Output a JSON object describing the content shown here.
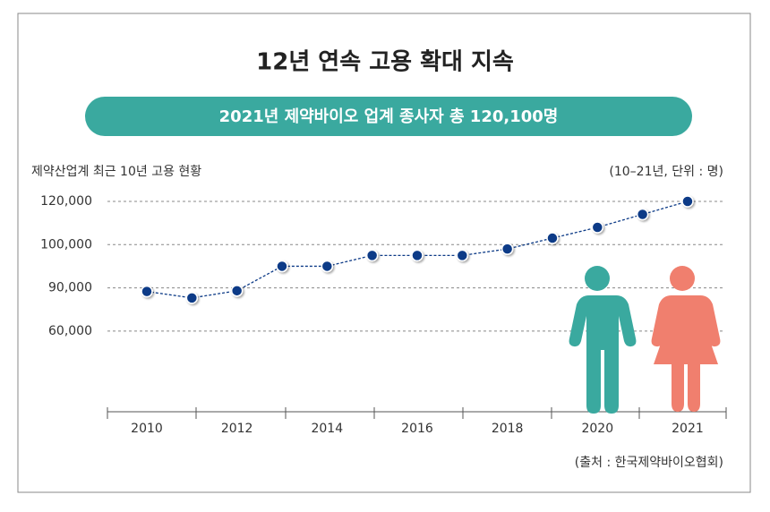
{
  "chart_data": {
    "type": "line",
    "title": "12년 연속 고용 확대 지속",
    "subtitle": "2021년 제약바이오 업계 종사자 총 120,100명",
    "y_label": "제약산업계 최근 10년 고용 현황",
    "unit_note": "(10–21년, 단위 : 명)",
    "source": "(출처 : 한국제약바이오협회)",
    "categories": [
      "2010",
      null,
      "2012",
      null,
      "2014",
      null,
      "2016",
      null,
      "2018",
      null,
      "2020",
      null,
      "2021"
    ],
    "values": [
      87500,
      83000,
      88000,
      95000,
      95000,
      97500,
      97500,
      97500,
      99000,
      103000,
      108000,
      114000,
      120000
    ],
    "color": "#0d3b87",
    "ylim": [
      0,
      120000
    ],
    "yticks": [
      {
        "value": 120000,
        "label": "120,000"
      },
      {
        "value": 100000,
        "label": "100,000"
      },
      {
        "value": 90000,
        "label": "90,000"
      },
      {
        "value": 60000,
        "label": "60,000"
      }
    ],
    "grid": true
  }
}
